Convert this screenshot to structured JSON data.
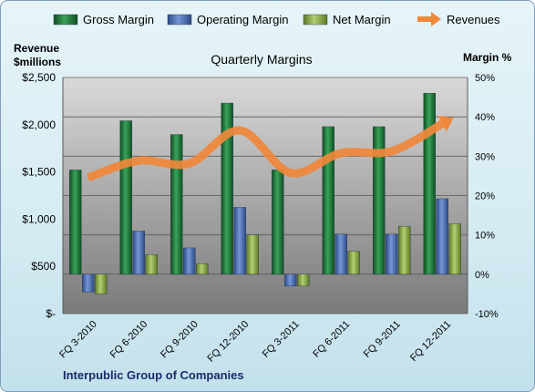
{
  "chart_data": {
    "type": "bar",
    "title": "Quarterly Margins",
    "company": "Interpublic Group of Companies",
    "y_left_label_line1": "Revenue",
    "y_left_label_line2": "$millions",
    "y_right_label": "Margin %",
    "categories": [
      "FQ 3-2010",
      "FQ 6-2010",
      "FQ 9-2010",
      "FQ 12-2010",
      "FQ 3-2011",
      "FQ 6-2011",
      "FQ 9-2011",
      "FQ 12-2011"
    ],
    "left_axis": {
      "min": 0,
      "max": 2500,
      "ticks": [
        "$-",
        "$500",
        "$1,000",
        "$1,500",
        "$2,000",
        "$2,500"
      ],
      "tick_values": [
        0,
        500,
        1000,
        1500,
        2000,
        2500
      ]
    },
    "right_axis": {
      "min": -10,
      "max": 50,
      "ticks": [
        "-10%",
        "0%",
        "10%",
        "20%",
        "30%",
        "40%",
        "50%"
      ],
      "tick_values": [
        -10,
        0,
        10,
        20,
        30,
        40,
        50
      ]
    },
    "grid": true,
    "legend": {
      "position": "top",
      "entries": [
        "Gross Margin",
        "Operating Margin",
        "Net Margin",
        "Revenues"
      ]
    },
    "series": [
      {
        "name": "Gross Margin",
        "axis": "right",
        "kind": "bar",
        "color": "#1f7a3c",
        "values": [
          26.5,
          39,
          35.5,
          43.5,
          26.5,
          37.5,
          37.5,
          46
        ]
      },
      {
        "name": "Operating Margin",
        "axis": "right",
        "kind": "bar",
        "color": "#4f72b8",
        "values": [
          -4.5,
          11,
          6.7,
          17,
          -3,
          10.2,
          10.2,
          19.2
        ]
      },
      {
        "name": "Net Margin",
        "axis": "right",
        "kind": "bar",
        "color": "#8cab4a",
        "values": [
          -5,
          5,
          2.7,
          10,
          -3,
          5.8,
          12.2,
          12.8
        ]
      },
      {
        "name": "Revenues",
        "axis": "left",
        "kind": "line",
        "color": "#f0883a",
        "values": [
          1440,
          1620,
          1590,
          1940,
          1490,
          1700,
          1720,
          2010
        ]
      }
    ]
  }
}
